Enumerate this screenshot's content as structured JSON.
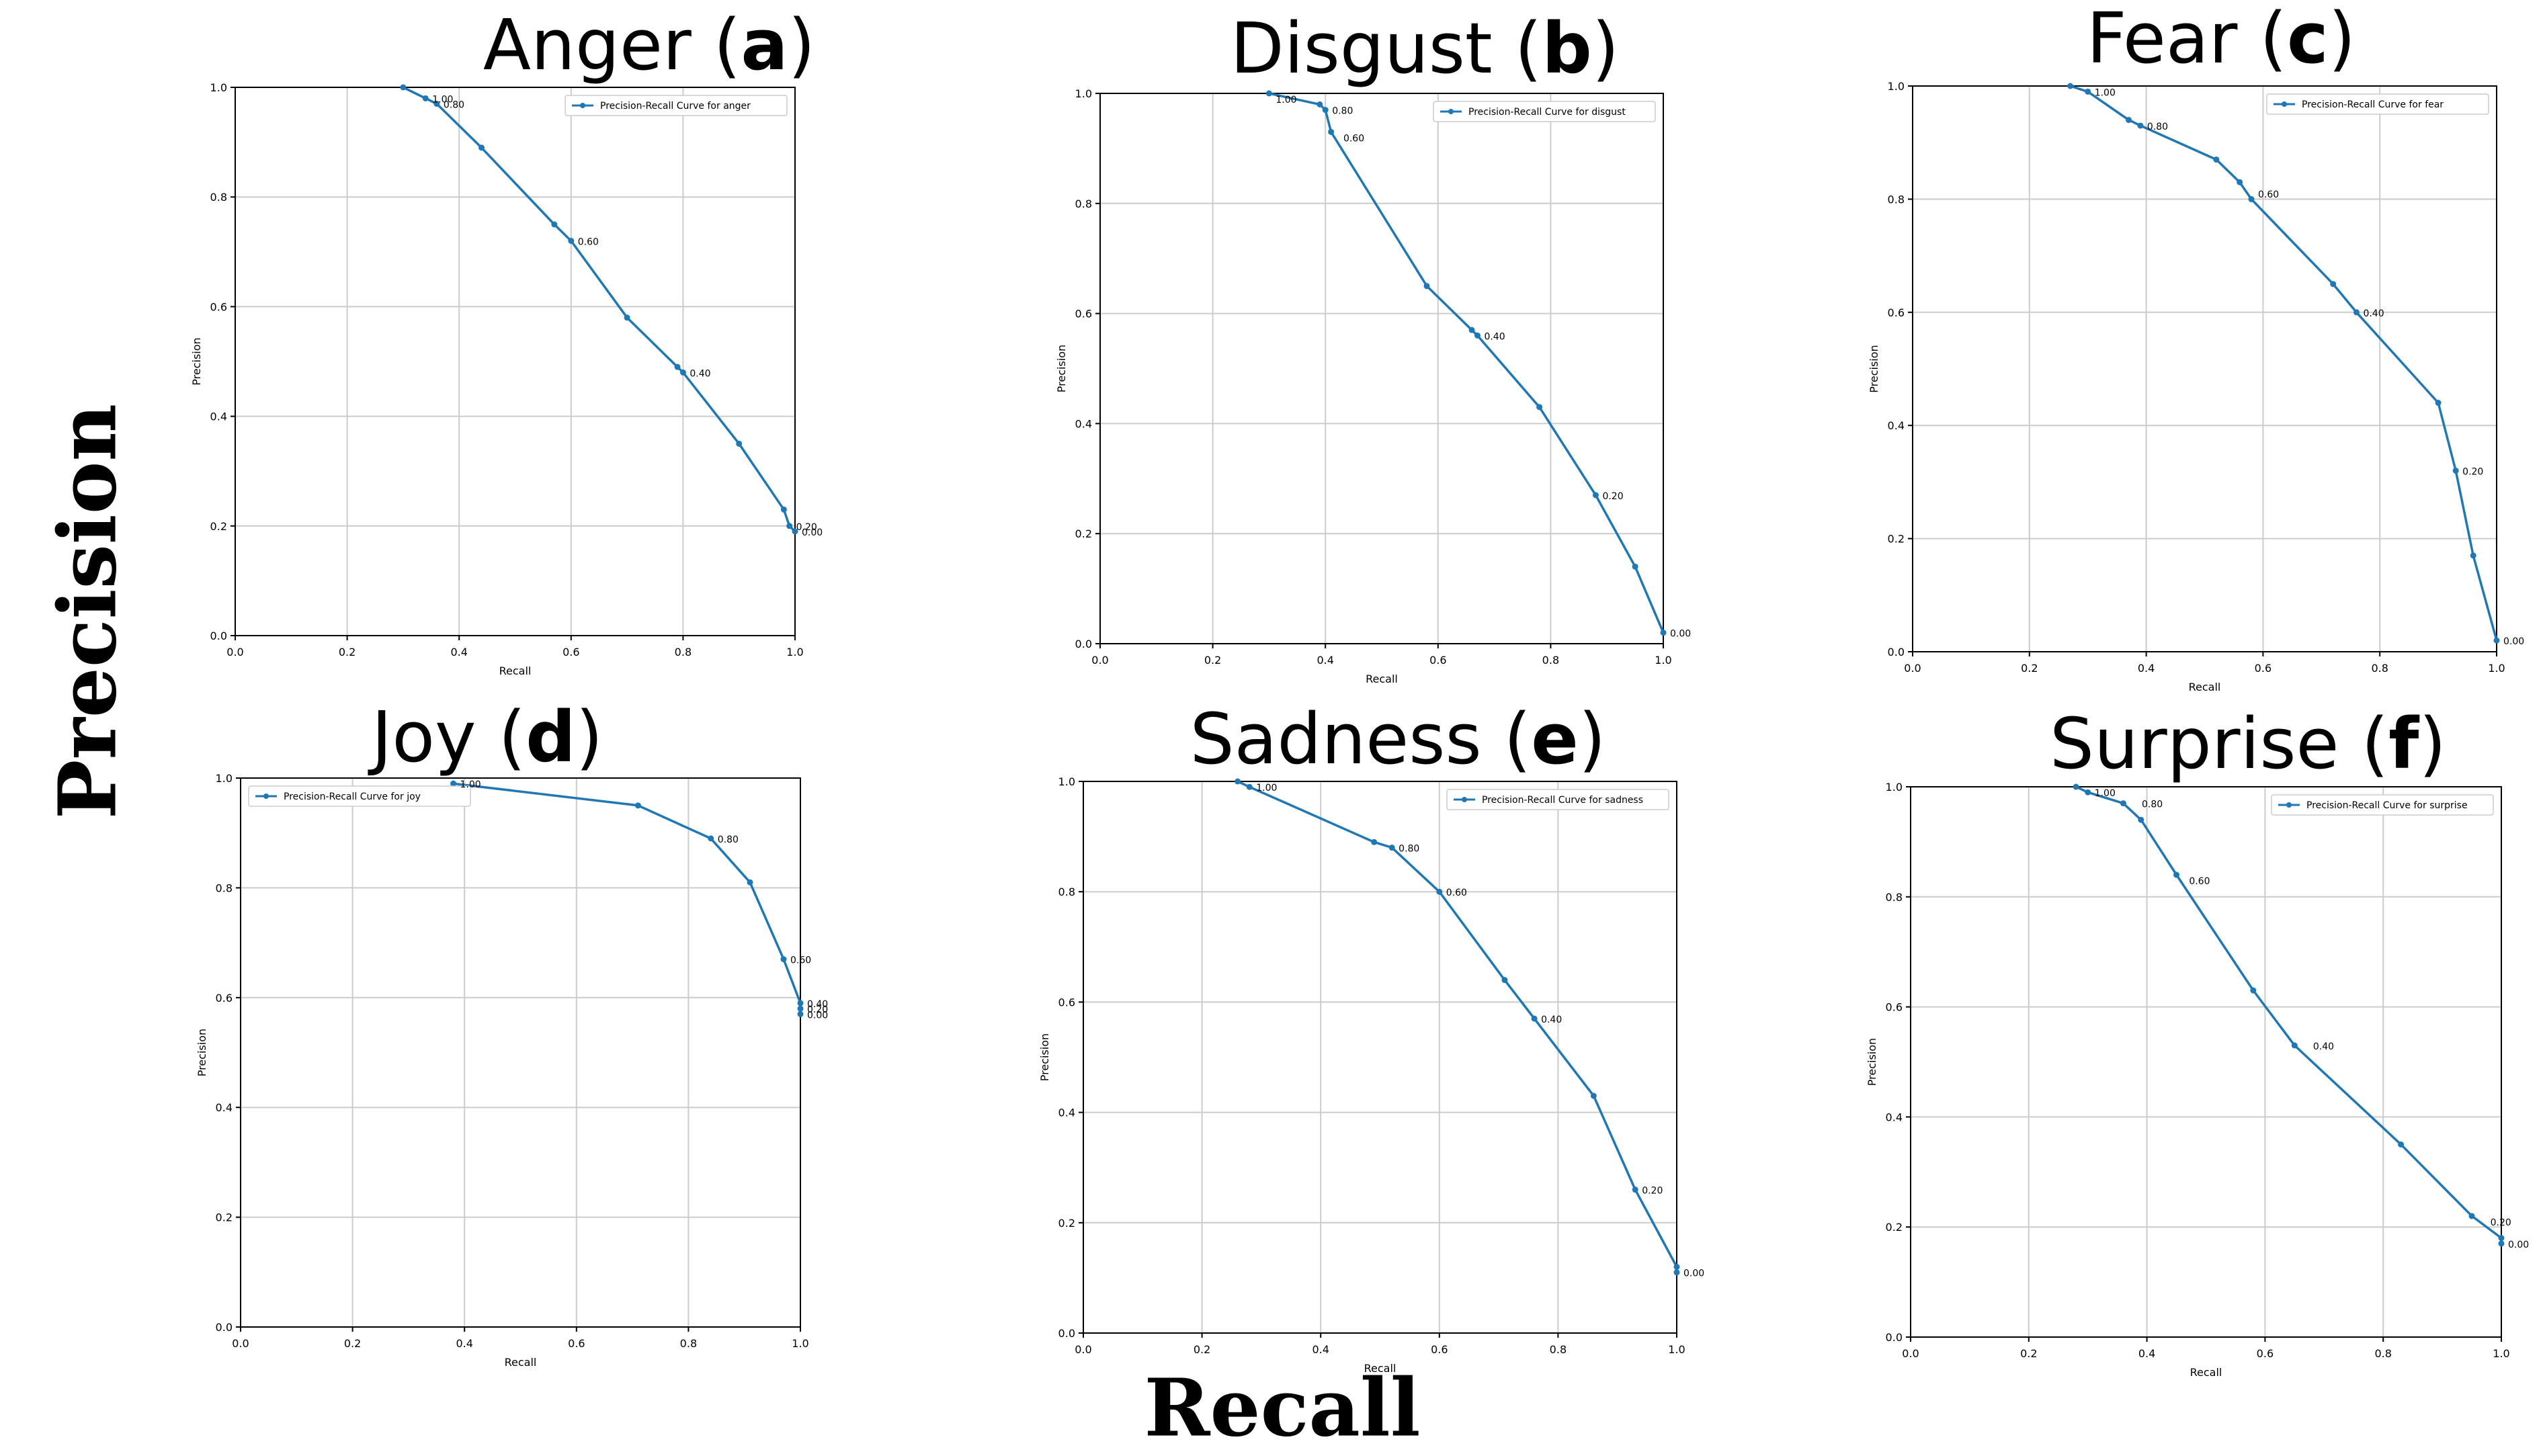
{
  "figure": {
    "y_label": "Precision",
    "x_label": "Recall",
    "line_color": "#1f77b4",
    "grid_color": "#cccccc"
  },
  "chart_data": [
    {
      "type": "line",
      "title": "Anger",
      "title_letter": "a",
      "xlabel": "Recall",
      "ylabel": "Precision",
      "xlim": [
        0,
        1
      ],
      "ylim": [
        0,
        1
      ],
      "xticks": [
        "0.0",
        "0.2",
        "0.4",
        "0.6",
        "0.8",
        "1.0"
      ],
      "yticks": [
        "0.0",
        "0.2",
        "0.4",
        "0.6",
        "0.8",
        "1.0"
      ],
      "grid": true,
      "legend": "top-right",
      "series": [
        {
          "name": "Precision-Recall Curve for anger",
          "x": [
            0.3,
            0.34,
            0.36,
            0.44,
            0.57,
            0.6,
            0.7,
            0.79,
            0.8,
            0.9,
            0.98,
            0.99,
            1.0
          ],
          "y": [
            1.0,
            0.98,
            0.97,
            0.89,
            0.75,
            0.72,
            0.58,
            0.49,
            0.48,
            0.35,
            0.23,
            0.2,
            0.19
          ]
        }
      ],
      "annotations": [
        {
          "text": "1.00",
          "x": 0.34,
          "y": 0.98
        },
        {
          "text": "0.80",
          "x": 0.36,
          "y": 0.97
        },
        {
          "text": "0.60",
          "x": 0.6,
          "y": 0.72
        },
        {
          "text": "0.40",
          "x": 0.8,
          "y": 0.48
        },
        {
          "text": "0.20",
          "x": 0.99,
          "y": 0.2
        },
        {
          "text": "0.00",
          "x": 1.0,
          "y": 0.19
        }
      ]
    },
    {
      "type": "line",
      "title": "Disgust",
      "title_letter": "b",
      "xlabel": "Recall",
      "ylabel": "Precision",
      "xlim": [
        0,
        1
      ],
      "ylim": [
        0,
        1
      ],
      "xticks": [
        "0.0",
        "0.2",
        "0.4",
        "0.6",
        "0.8",
        "1.0"
      ],
      "yticks": [
        "0.0",
        "0.2",
        "0.4",
        "0.6",
        "0.8",
        "1.0"
      ],
      "grid": true,
      "legend": "top-right",
      "series": [
        {
          "name": "Precision-Recall Curve for disgust",
          "x": [
            0.3,
            0.39,
            0.4,
            0.41,
            0.58,
            0.66,
            0.67,
            0.78,
            0.88,
            0.95,
            1.0
          ],
          "y": [
            1.0,
            0.98,
            0.97,
            0.93,
            0.65,
            0.57,
            0.56,
            0.43,
            0.27,
            0.14,
            0.02
          ]
        }
      ],
      "annotations": [
        {
          "text": "1.00",
          "x": 0.3,
          "y": 0.99
        },
        {
          "text": "0.80",
          "x": 0.4,
          "y": 0.97
        },
        {
          "text": "0.60",
          "x": 0.42,
          "y": 0.92
        },
        {
          "text": "0.40",
          "x": 0.67,
          "y": 0.56
        },
        {
          "text": "0.20",
          "x": 0.88,
          "y": 0.27
        },
        {
          "text": "0.00",
          "x": 1.0,
          "y": 0.02
        }
      ]
    },
    {
      "type": "line",
      "title": "Fear",
      "title_letter": "c",
      "xlabel": "Recall",
      "ylabel": "Precision",
      "xlim": [
        0,
        1
      ],
      "ylim": [
        0,
        1
      ],
      "xticks": [
        "0.0",
        "0.2",
        "0.4",
        "0.6",
        "0.8",
        "1.0"
      ],
      "yticks": [
        "0.0",
        "0.2",
        "0.4",
        "0.6",
        "0.8",
        "1.0"
      ],
      "grid": true,
      "legend": "top-right",
      "series": [
        {
          "name": "Precision-Recall Curve for fear",
          "x": [
            0.27,
            0.3,
            0.37,
            0.39,
            0.52,
            0.56,
            0.58,
            0.72,
            0.76,
            0.9,
            0.93,
            0.96,
            1.0
          ],
          "y": [
            1.0,
            0.99,
            0.94,
            0.93,
            0.87,
            0.83,
            0.8,
            0.65,
            0.6,
            0.44,
            0.32,
            0.17,
            0.02
          ]
        }
      ],
      "annotations": [
        {
          "text": "1.00",
          "x": 0.3,
          "y": 0.99
        },
        {
          "text": "0.80",
          "x": 0.39,
          "y": 0.93
        },
        {
          "text": "0.60",
          "x": 0.58,
          "y": 0.81
        },
        {
          "text": "0.40",
          "x": 0.76,
          "y": 0.6
        },
        {
          "text": "0.20",
          "x": 0.93,
          "y": 0.32
        },
        {
          "text": "0.00",
          "x": 1.0,
          "y": 0.02
        }
      ]
    },
    {
      "type": "line",
      "title": "Joy",
      "title_letter": "d",
      "xlabel": "Recall",
      "ylabel": "Precision",
      "xlim": [
        0,
        1
      ],
      "ylim": [
        0,
        1
      ],
      "xticks": [
        "0.0",
        "0.2",
        "0.4",
        "0.6",
        "0.8",
        "1.0"
      ],
      "yticks": [
        "0.0",
        "0.2",
        "0.4",
        "0.6",
        "0.8",
        "1.0"
      ],
      "grid": true,
      "legend": "top-left",
      "series": [
        {
          "name": "Precision-Recall Curve for joy",
          "x": [
            0.38,
            0.71,
            0.84,
            0.91,
            0.97,
            1.0,
            1.0,
            1.0
          ],
          "y": [
            0.99,
            0.95,
            0.89,
            0.81,
            0.67,
            0.59,
            0.58,
            0.57
          ]
        }
      ],
      "annotations": [
        {
          "text": "1.00",
          "x": 0.38,
          "y": 0.99
        },
        {
          "text": "0.80",
          "x": 0.84,
          "y": 0.89
        },
        {
          "text": "0.60",
          "x": 0.97,
          "y": 0.67
        },
        {
          "text": "0.40",
          "x": 1.0,
          "y": 0.59
        },
        {
          "text": "0.20",
          "x": 1.0,
          "y": 0.58
        },
        {
          "text": "0.00",
          "x": 1.0,
          "y": 0.57
        }
      ]
    },
    {
      "type": "line",
      "title": "Sadness",
      "title_letter": "e",
      "xlabel": "Recall",
      "ylabel": "Precision",
      "xlim": [
        0,
        1
      ],
      "ylim": [
        0,
        1
      ],
      "xticks": [
        "0.0",
        "0.2",
        "0.4",
        "0.6",
        "0.8",
        "1.0"
      ],
      "yticks": [
        "0.0",
        "0.2",
        "0.4",
        "0.6",
        "0.8",
        "1.0"
      ],
      "grid": true,
      "legend": "top-right",
      "series": [
        {
          "name": "Precision-Recall Curve for sadness",
          "x": [
            0.26,
            0.28,
            0.49,
            0.52,
            0.6,
            0.71,
            0.76,
            0.86,
            0.93,
            1.0,
            1.0
          ],
          "y": [
            1.0,
            0.99,
            0.89,
            0.88,
            0.8,
            0.64,
            0.57,
            0.43,
            0.26,
            0.12,
            0.11
          ]
        }
      ],
      "annotations": [
        {
          "text": "1.00",
          "x": 0.28,
          "y": 0.99
        },
        {
          "text": "0.80",
          "x": 0.52,
          "y": 0.88
        },
        {
          "text": "0.60",
          "x": 0.6,
          "y": 0.8
        },
        {
          "text": "0.40",
          "x": 0.76,
          "y": 0.57
        },
        {
          "text": "0.20",
          "x": 0.93,
          "y": 0.26
        },
        {
          "text": "0.00",
          "x": 1.0,
          "y": 0.11
        }
      ]
    },
    {
      "type": "line",
      "title": "Surprise",
      "title_letter": "f",
      "xlabel": "Recall",
      "ylabel": "Precision",
      "xlim": [
        0,
        1
      ],
      "ylim": [
        0,
        1
      ],
      "xticks": [
        "0.0",
        "0.2",
        "0.4",
        "0.6",
        "0.8",
        "1.0"
      ],
      "yticks": [
        "0.0",
        "0.2",
        "0.4",
        "0.6",
        "0.8",
        "1.0"
      ],
      "grid": true,
      "legend": "top-right",
      "series": [
        {
          "name": "Precision-Recall Curve for surprise",
          "x": [
            0.28,
            0.3,
            0.36,
            0.39,
            0.45,
            0.58,
            0.65,
            0.83,
            0.95,
            1.0,
            1.0
          ],
          "y": [
            1.0,
            0.99,
            0.97,
            0.94,
            0.84,
            0.63,
            0.53,
            0.35,
            0.22,
            0.18,
            0.17
          ]
        }
      ],
      "annotations": [
        {
          "text": "1.00",
          "x": 0.3,
          "y": 0.99
        },
        {
          "text": "0.80",
          "x": 0.38,
          "y": 0.97
        },
        {
          "text": "0.60",
          "x": 0.46,
          "y": 0.83
        },
        {
          "text": "0.40",
          "x": 0.67,
          "y": 0.53
        },
        {
          "text": "0.20",
          "x": 0.97,
          "y": 0.21
        },
        {
          "text": "0.00",
          "x": 1.0,
          "y": 0.17
        }
      ]
    }
  ]
}
